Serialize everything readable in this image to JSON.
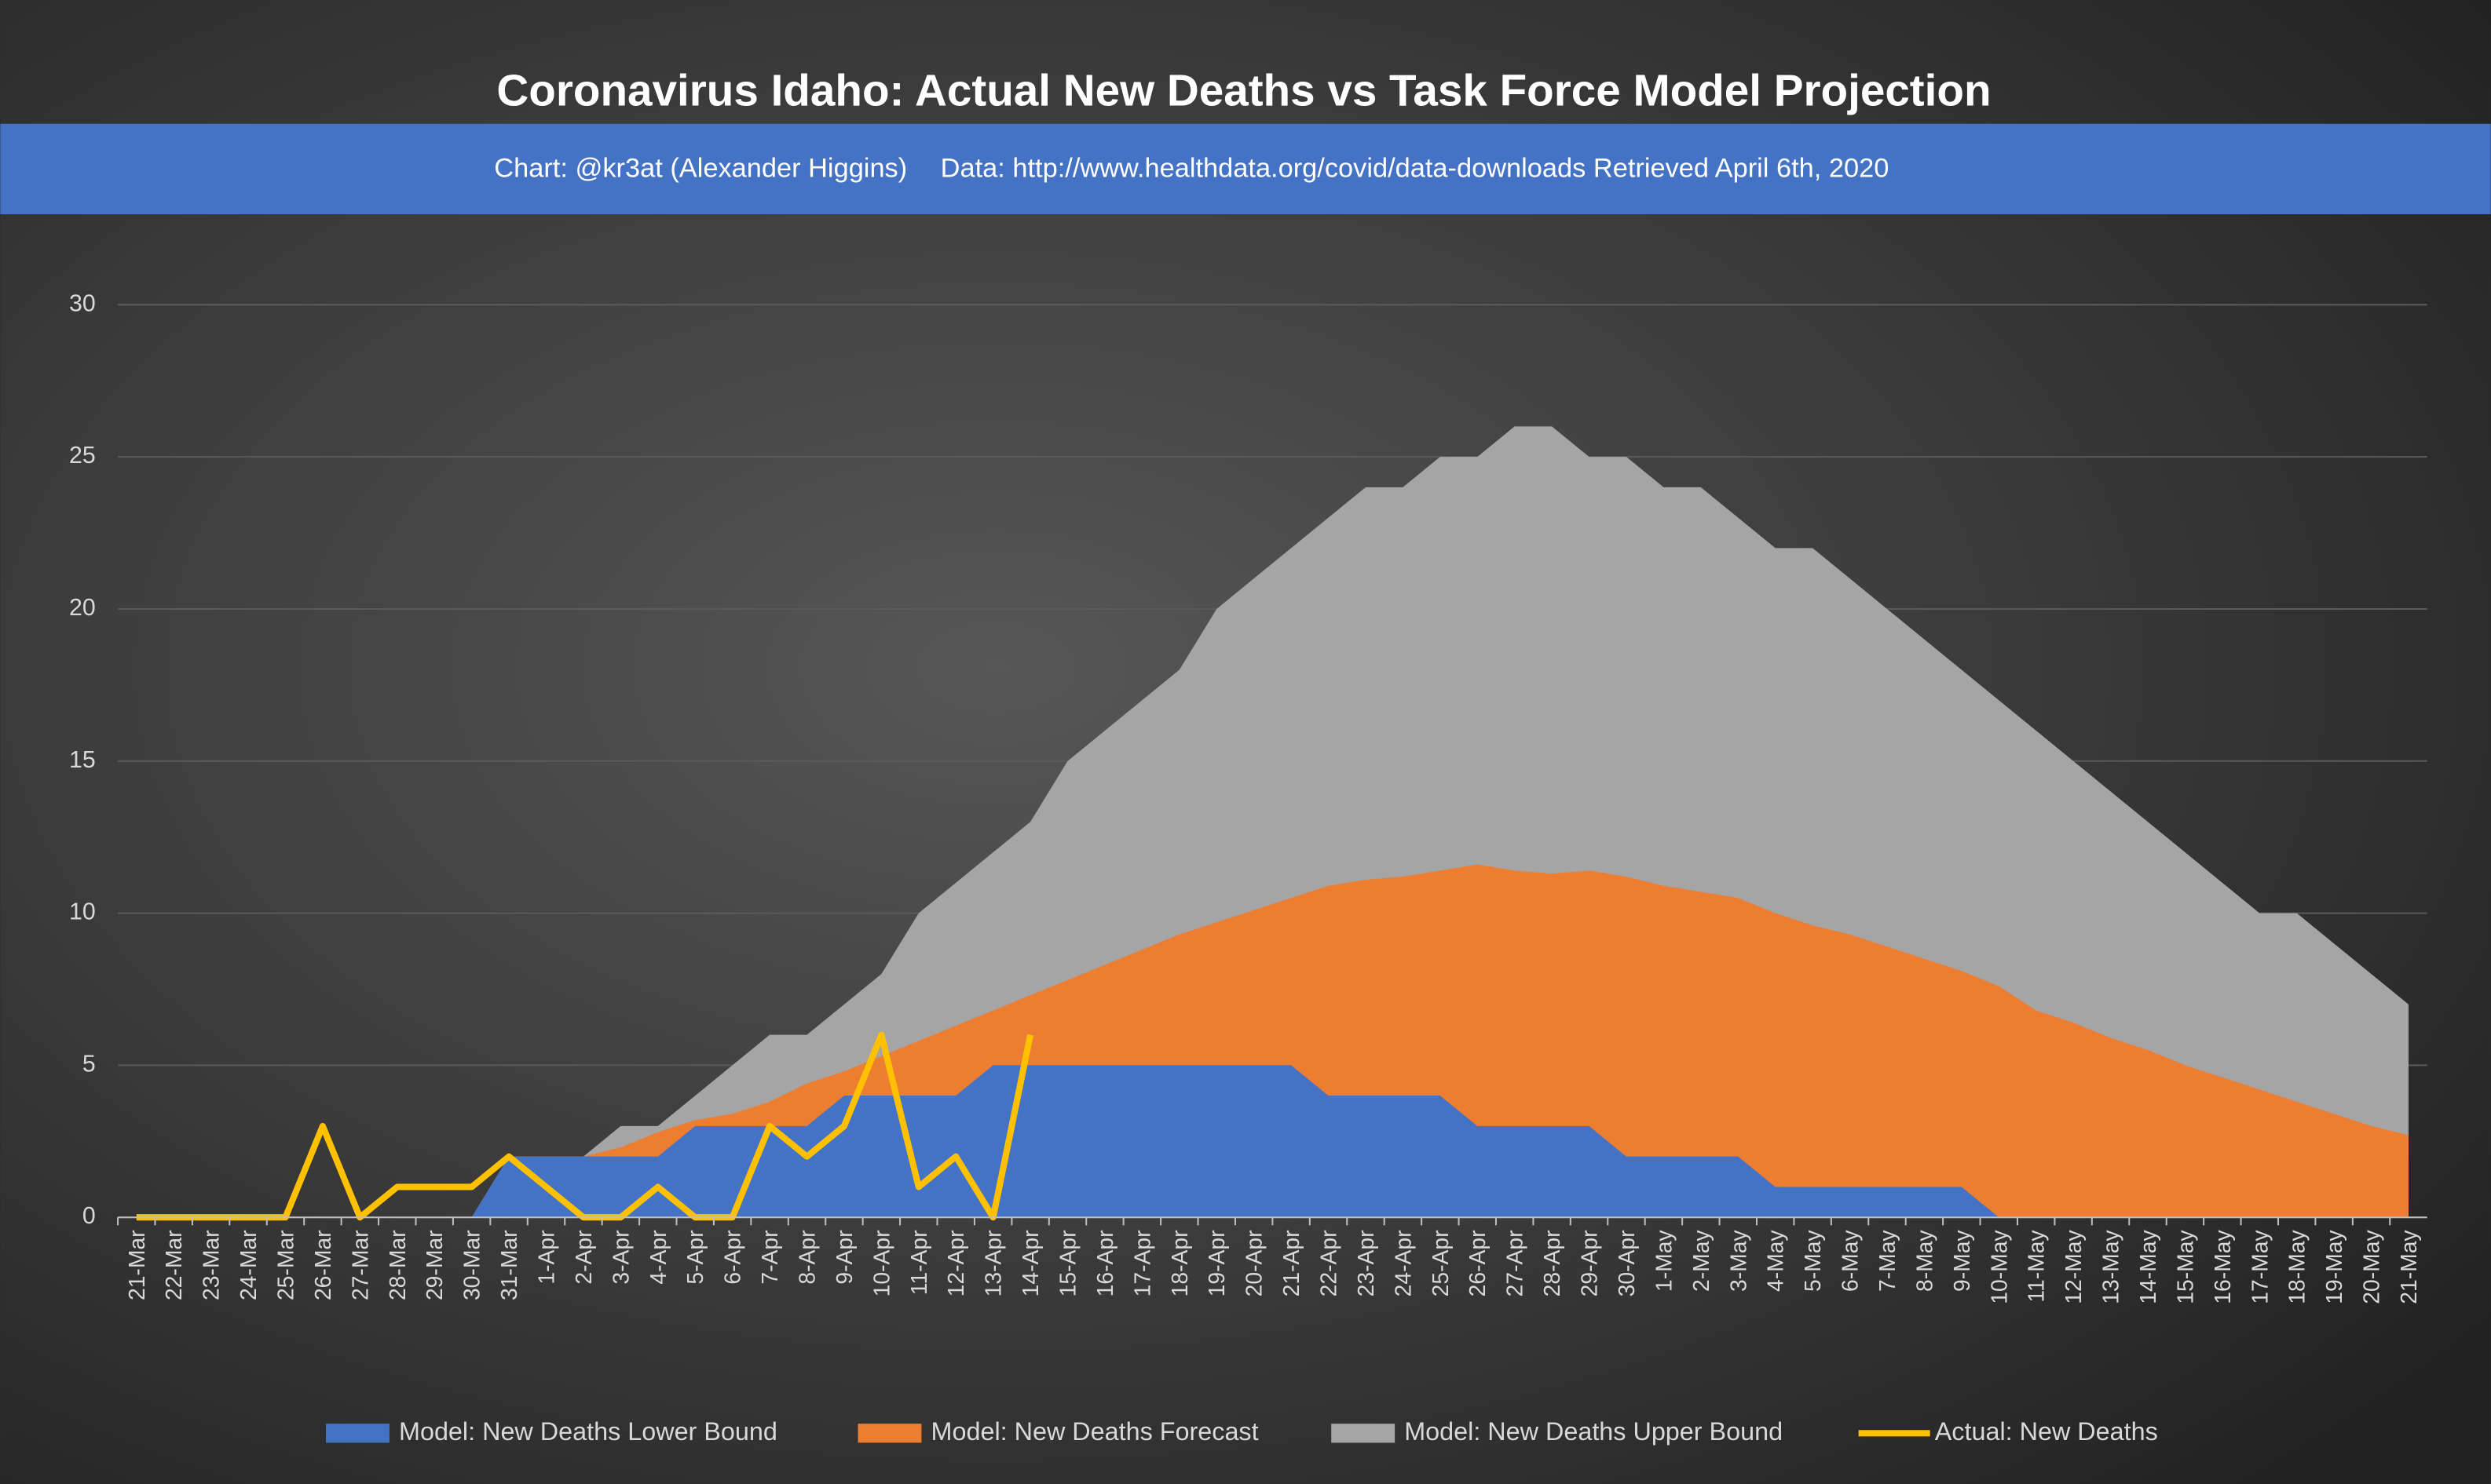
{
  "chart_data": {
    "type": "area",
    "title": "Coronavirus Idaho: Actual New Deaths vs Task Force Model Projection",
    "subtitle": "Chart: @kr3at (Alexander Higgins)",
    "source": "Data: http://www.healthdata.org/covid/data-downloads Retrieved April 6th, 2020",
    "categories": [
      "21-Mar",
      "22-Mar",
      "23-Mar",
      "24-Mar",
      "25-Mar",
      "26-Mar",
      "27-Mar",
      "28-Mar",
      "29-Mar",
      "30-Mar",
      "31-Mar",
      "1-Apr",
      "2-Apr",
      "3-Apr",
      "4-Apr",
      "5-Apr",
      "6-Apr",
      "7-Apr",
      "8-Apr",
      "9-Apr",
      "10-Apr",
      "11-Apr",
      "12-Apr",
      "13-Apr",
      "14-Apr",
      "15-Apr",
      "16-Apr",
      "17-Apr",
      "18-Apr",
      "19-Apr",
      "20-Apr",
      "21-Apr",
      "22-Apr",
      "23-Apr",
      "24-Apr",
      "25-Apr",
      "26-Apr",
      "27-Apr",
      "28-Apr",
      "29-Apr",
      "30-Apr",
      "1-May",
      "2-May",
      "3-May",
      "4-May",
      "5-May",
      "6-May",
      "7-May",
      "8-May",
      "9-May",
      "10-May",
      "11-May",
      "12-May",
      "13-May",
      "14-May",
      "15-May",
      "16-May",
      "17-May",
      "18-May",
      "19-May",
      "20-May",
      "21-May"
    ],
    "series": [
      {
        "name": "Model: New Deaths Lower Bound",
        "color": "#4472c4",
        "values": [
          0,
          0,
          0,
          0,
          0,
          0,
          0,
          0,
          0,
          0,
          2,
          2,
          2,
          2,
          2,
          3,
          3,
          3,
          3,
          4,
          4,
          4,
          4,
          5,
          5,
          5,
          5,
          5,
          5,
          5,
          5,
          5,
          4,
          4,
          4,
          4,
          3,
          3,
          3,
          3,
          2,
          2,
          2,
          2,
          1,
          1,
          1,
          1,
          1,
          1,
          0,
          0,
          0,
          0,
          0,
          0,
          0,
          0,
          0,
          0,
          0,
          0
        ]
      },
      {
        "name": "Model: New Deaths Forecast",
        "color": "#ed7d31",
        "values": [
          0,
          0,
          0,
          0,
          0,
          0,
          0,
          0,
          0,
          0,
          2,
          2,
          2,
          2.3,
          2.8,
          3.2,
          3.4,
          3.8,
          4.4,
          4.8,
          5.3,
          5.8,
          6.3,
          6.8,
          7.3,
          7.8,
          8.3,
          8.8,
          9.3,
          9.7,
          10.1,
          10.5,
          10.9,
          11.1,
          11.2,
          11.4,
          11.6,
          11.4,
          11.3,
          11.4,
          11.2,
          10.9,
          10.7,
          10.5,
          10.0,
          9.6,
          9.3,
          8.9,
          8.5,
          8.1,
          7.6,
          6.8,
          6.4,
          5.9,
          5.5,
          5.0,
          4.6,
          4.2,
          3.8,
          3.4,
          3.0,
          2.7
        ]
      },
      {
        "name": "Model: New Deaths Upper Bound",
        "color": "#a5a5a5",
        "values": [
          0,
          0,
          0,
          0,
          0,
          0,
          0,
          0,
          0,
          0,
          2,
          2,
          2,
          3,
          3,
          4,
          5,
          6,
          6,
          7,
          8,
          10,
          11,
          12,
          13,
          15,
          16,
          17,
          18,
          20,
          21,
          22,
          23,
          24,
          24,
          25,
          25,
          26,
          26,
          25,
          25,
          24,
          24,
          23,
          22,
          22,
          21,
          20,
          19,
          18,
          17,
          16,
          15,
          14,
          13,
          12,
          11,
          10,
          10,
          9,
          8,
          7
        ]
      },
      {
        "name": "Actual: New Deaths",
        "color": "#ffc000",
        "kind": "line",
        "values": [
          0,
          0,
          0,
          0,
          0,
          3,
          0,
          1,
          1,
          1,
          2,
          1,
          0,
          0,
          1,
          0,
          0,
          3,
          2,
          3,
          6,
          1,
          2,
          0,
          6,
          null,
          null,
          null,
          null,
          null,
          null,
          null,
          null,
          null,
          null,
          null,
          null,
          null,
          null,
          null,
          null,
          null,
          null,
          null,
          null,
          null,
          null,
          null,
          null,
          null,
          null,
          null,
          null,
          null,
          null,
          null,
          null,
          null,
          null,
          null,
          null,
          null
        ]
      }
    ],
    "ylim": [
      0,
      30
    ],
    "yticks": [
      0,
      5,
      10,
      15,
      20,
      25,
      30
    ],
    "grid": true,
    "legend": "bottom"
  }
}
